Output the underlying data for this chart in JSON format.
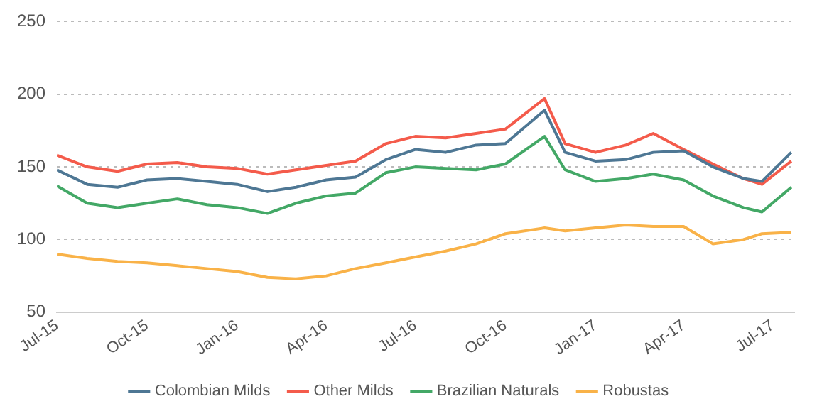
{
  "chart_data": {
    "type": "line",
    "x": [
      "2015-07",
      "2015-08",
      "2015-09",
      "2015-10",
      "2015-11",
      "2015-12",
      "2016-01",
      "2016-02",
      "2016-03",
      "2016-04",
      "2016-05",
      "2016-06",
      "2016-07",
      "2016-08",
      "2016-09",
      "2016-10",
      "2016-11-10",
      "2016-12",
      "2017-01",
      "2017-02",
      "2017-03",
      "2017-04",
      "2017-05",
      "2017-06",
      "2017-06-20",
      "2017-07-20"
    ],
    "series": [
      {
        "name": "Colombian Milds",
        "color": "#4e7794",
        "values": [
          148,
          138,
          136,
          141,
          142,
          140,
          138,
          133,
          136,
          141,
          143,
          155,
          162,
          160,
          165,
          166,
          189,
          160,
          154,
          155,
          160,
          161,
          150,
          142,
          140,
          160
        ]
      },
      {
        "name": "Other Milds",
        "color": "#f45b4b",
        "values": [
          158,
          150,
          147,
          152,
          153,
          150,
          149,
          145,
          148,
          151,
          154,
          166,
          171,
          170,
          173,
          176,
          197,
          166,
          160,
          165,
          173,
          162,
          152,
          142,
          138,
          154
        ]
      },
      {
        "name": "Brazilian Naturals",
        "color": "#43a866",
        "values": [
          137,
          125,
          122,
          125,
          128,
          124,
          122,
          118,
          125,
          130,
          132,
          146,
          150,
          149,
          148,
          152,
          171,
          148,
          140,
          142,
          145,
          141,
          130,
          122,
          119,
          136
        ]
      },
      {
        "name": "Robustas",
        "color": "#f9b248",
        "values": [
          90,
          87,
          85,
          84,
          82,
          80,
          78,
          74,
          73,
          75,
          80,
          84,
          88,
          92,
          97,
          104,
          108,
          106,
          108,
          110,
          109,
          109,
          97,
          100,
          104,
          105
        ]
      }
    ],
    "xlim": [
      "2015-07",
      "2017-07-23"
    ],
    "xticks": [
      {
        "value": "2015-07",
        "label": "Jul-15"
      },
      {
        "value": "2015-10",
        "label": "Oct-15"
      },
      {
        "value": "2016-01",
        "label": "Jan-16"
      },
      {
        "value": "2016-04",
        "label": "Apr-16"
      },
      {
        "value": "2016-07",
        "label": "Jul-16"
      },
      {
        "value": "2016-10",
        "label": "Oct-16"
      },
      {
        "value": "2017-01",
        "label": "Jan-17"
      },
      {
        "value": "2017-04",
        "label": "Apr-17"
      },
      {
        "value": "2017-07",
        "label": "Jul-17"
      }
    ],
    "ylim": [
      50,
      250
    ],
    "yticks": [
      50,
      100,
      150,
      200,
      250
    ],
    "grid": "y",
    "legend": "bottom",
    "marker": "none",
    "line_style": "solid"
  }
}
